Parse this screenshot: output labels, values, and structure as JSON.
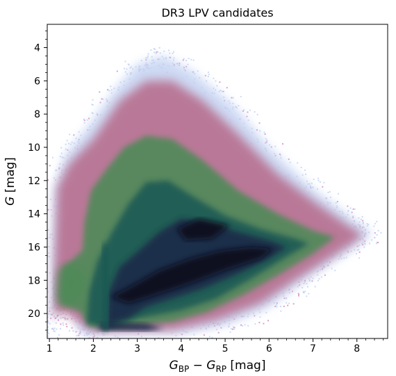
{
  "chart_data": {
    "type": "scatter",
    "title": "DR3 LPV candidates",
    "xlabel": "G_BP − G_RP [mag]",
    "xlabel_parts": {
      "main": "G",
      "sub1": "BP",
      "minus": " − ",
      "main2": "G",
      "sub2": "RP",
      "unit": " [mag]"
    },
    "ylabel": "G [mag]",
    "ylabel_parts": {
      "main": "G",
      "unit": " [mag]"
    },
    "xlim": [
      0.95,
      8.7
    ],
    "ylim": [
      21.5,
      2.6
    ],
    "y_inverted": true,
    "x_ticks": [
      1,
      2,
      3,
      4,
      5,
      6,
      7,
      8
    ],
    "y_ticks": [
      4,
      6,
      8,
      10,
      12,
      14,
      16,
      18,
      20
    ],
    "x_tick_labels": [
      "1",
      "2",
      "3",
      "4",
      "5",
      "6",
      "7",
      "8"
    ],
    "y_tick_labels": [
      "4",
      "6",
      "8",
      "10",
      "12",
      "14",
      "16",
      "18",
      "20"
    ],
    "grid": false,
    "legend": "none",
    "colormap": [
      "#c5d3f2",
      "#d88fc2",
      "#b76e8e",
      "#4f8a58",
      "#1f5a55",
      "#1c2a48",
      "#0c0a1e"
    ],
    "density_regions": [
      {
        "name": "outer envelope",
        "level": 0.08,
        "points": [
          [
            1.0,
            21.0
          ],
          [
            1.05,
            16.5
          ],
          [
            1.1,
            12.5
          ],
          [
            1.35,
            10.5
          ],
          [
            1.8,
            9.0
          ],
          [
            2.5,
            6.5
          ],
          [
            3.0,
            5.0
          ],
          [
            3.6,
            4.5
          ],
          [
            4.3,
            5.5
          ],
          [
            5.2,
            7.5
          ],
          [
            6.0,
            10.0
          ],
          [
            7.0,
            12.5
          ],
          [
            7.9,
            14.3
          ],
          [
            8.35,
            15.2
          ],
          [
            7.8,
            16.3
          ],
          [
            6.8,
            18.0
          ],
          [
            6.0,
            19.6
          ],
          [
            5.0,
            20.7
          ],
          [
            4.0,
            21.2
          ],
          [
            2.0,
            21.3
          ],
          [
            1.7,
            21.2
          ],
          [
            1.5,
            19.8
          ],
          [
            1.1,
            19.8
          ]
        ]
      },
      {
        "name": "pink shell",
        "level": 0.3,
        "points": [
          [
            1.1,
            20.2
          ],
          [
            1.12,
            16.7
          ],
          [
            1.18,
            12.4
          ],
          [
            1.45,
            11.0
          ],
          [
            2.0,
            9.5
          ],
          [
            2.6,
            7.2
          ],
          [
            3.2,
            6.0
          ],
          [
            3.8,
            6.0
          ],
          [
            4.5,
            7.2
          ],
          [
            5.3,
            9.2
          ],
          [
            6.2,
            11.6
          ],
          [
            7.1,
            13.4
          ],
          [
            7.8,
            14.7
          ],
          [
            8.15,
            15.3
          ],
          [
            7.6,
            16.3
          ],
          [
            6.6,
            18.0
          ],
          [
            5.8,
            19.4
          ],
          [
            4.8,
            20.4
          ],
          [
            3.8,
            21.0
          ],
          [
            1.95,
            21.05
          ],
          [
            1.7,
            20.6
          ],
          [
            1.35,
            19.9
          ]
        ]
      },
      {
        "name": "green body",
        "level": 0.55,
        "points": [
          [
            1.25,
            19.4
          ],
          [
            1.3,
            17.2
          ],
          [
            1.5,
            16.8
          ],
          [
            1.75,
            16.2
          ],
          [
            1.8,
            14.5
          ],
          [
            1.95,
            12.6
          ],
          [
            2.3,
            11.3
          ],
          [
            2.7,
            10.0
          ],
          [
            3.2,
            9.3
          ],
          [
            3.8,
            9.5
          ],
          [
            4.5,
            10.8
          ],
          [
            5.3,
            12.6
          ],
          [
            6.2,
            14.0
          ],
          [
            7.0,
            15.0
          ],
          [
            7.5,
            15.4
          ],
          [
            7.0,
            16.4
          ],
          [
            6.2,
            17.7
          ],
          [
            5.4,
            18.9
          ],
          [
            4.6,
            19.9
          ],
          [
            3.8,
            20.5
          ],
          [
            2.3,
            20.9
          ],
          [
            1.9,
            20.8
          ],
          [
            1.7,
            19.9
          ]
        ]
      },
      {
        "name": "teal core",
        "level": 0.72,
        "points": [
          [
            1.85,
            20.6
          ],
          [
            1.9,
            18.6
          ],
          [
            2.1,
            16.8
          ],
          [
            2.4,
            15.2
          ],
          [
            2.8,
            13.4
          ],
          [
            3.2,
            12.1
          ],
          [
            3.7,
            12.0
          ],
          [
            4.3,
            13.0
          ],
          [
            5.0,
            14.1
          ],
          [
            5.8,
            14.9
          ],
          [
            6.6,
            15.5
          ],
          [
            6.9,
            15.8
          ],
          [
            6.4,
            16.6
          ],
          [
            5.6,
            17.9
          ],
          [
            4.8,
            19.1
          ],
          [
            4.0,
            19.8
          ],
          [
            3.0,
            20.3
          ],
          [
            2.4,
            20.8
          ]
        ]
      },
      {
        "name": "dark core",
        "level": 0.88,
        "points": [
          [
            2.3,
            20.7
          ],
          [
            2.35,
            18.7
          ],
          [
            2.6,
            17.2
          ],
          [
            3.0,
            16.3
          ],
          [
            3.5,
            15.1
          ],
          [
            4.0,
            14.3
          ],
          [
            4.6,
            14.5
          ],
          [
            5.3,
            15.1
          ],
          [
            6.0,
            15.6
          ],
          [
            6.4,
            16.0
          ],
          [
            6.0,
            16.7
          ],
          [
            5.3,
            17.6
          ],
          [
            4.5,
            18.5
          ],
          [
            3.8,
            19.1
          ],
          [
            3.2,
            19.6
          ],
          [
            2.8,
            20.3
          ]
        ]
      },
      {
        "name": "darkest ridge",
        "level": 1.0,
        "points": [
          [
            2.4,
            19.0
          ],
          [
            2.9,
            18.3
          ],
          [
            3.5,
            17.4
          ],
          [
            4.2,
            16.7
          ],
          [
            4.9,
            16.2
          ],
          [
            5.6,
            16.0
          ],
          [
            6.1,
            16.1
          ],
          [
            5.8,
            16.7
          ],
          [
            5.0,
            17.4
          ],
          [
            4.2,
            18.2
          ],
          [
            3.4,
            18.9
          ],
          [
            2.8,
            19.4
          ]
        ]
      },
      {
        "name": "upper dark lobe",
        "level": 0.95,
        "points": [
          [
            3.9,
            14.9
          ],
          [
            4.4,
            14.3
          ],
          [
            5.1,
            14.7
          ],
          [
            4.7,
            15.5
          ],
          [
            4.1,
            15.6
          ]
        ]
      },
      {
        "name": "bottom cutoff band",
        "level": 0.9,
        "points": [
          [
            2.1,
            21.0
          ],
          [
            2.2,
            20.5
          ],
          [
            3.2,
            20.6
          ],
          [
            3.6,
            20.9
          ],
          [
            3.2,
            21.05
          ]
        ]
      },
      {
        "name": "left hook",
        "level": 0.45,
        "points": [
          [
            1.15,
            19.2
          ],
          [
            1.2,
            17.4
          ],
          [
            1.5,
            17.0
          ],
          [
            1.9,
            17.8
          ],
          [
            1.7,
            19.2
          ],
          [
            1.35,
            19.6
          ]
        ]
      },
      {
        "name": "vertical stripe",
        "level": 0.7,
        "points": [
          [
            2.2,
            21.0
          ],
          [
            2.2,
            15.8
          ],
          [
            2.35,
            15.8
          ],
          [
            2.35,
            21.0
          ]
        ]
      }
    ]
  }
}
